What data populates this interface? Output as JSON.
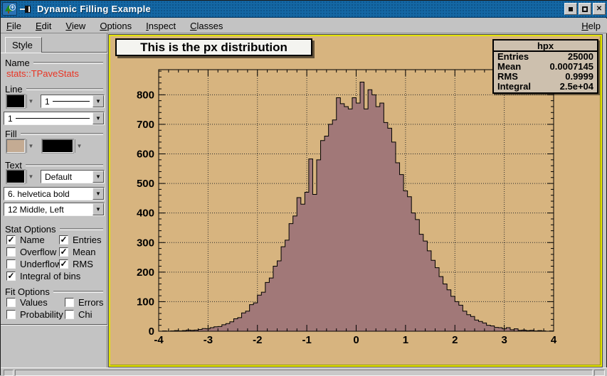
{
  "window": {
    "title": "Dynamic Filling Example"
  },
  "menubar": {
    "items": [
      {
        "label": "File"
      },
      {
        "label": "Edit"
      },
      {
        "label": "View"
      },
      {
        "label": "Options"
      },
      {
        "label": "Inspect"
      },
      {
        "label": "Classes"
      }
    ],
    "help": "Help"
  },
  "panel": {
    "tab": "Style",
    "name_group": {
      "label": "Name",
      "value": "stats::TPaveStats"
    },
    "line_group": {
      "label": "Line",
      "color": "#000000",
      "width_value": "1",
      "style_value": "1"
    },
    "fill_group": {
      "label": "Fill",
      "color": "#c4ab93",
      "pattern_color": "#000000"
    },
    "text_group": {
      "label": "Text",
      "color": "#000000",
      "align_value": "Default",
      "font_value": "6. helvetica bold",
      "size_value": "12 Middle, Left"
    },
    "stat_options": {
      "label": "Stat Options",
      "checks": [
        {
          "label": "Name",
          "checked": true
        },
        {
          "label": "Entries",
          "checked": true
        },
        {
          "label": "Overflow",
          "checked": false
        },
        {
          "label": "Mean",
          "checked": true
        },
        {
          "label": "Underflow",
          "checked": false
        },
        {
          "label": "RMS",
          "checked": true
        },
        {
          "label": "Integral of bins",
          "checked": true
        }
      ]
    },
    "fit_options": {
      "label": "Fit Options",
      "checks": [
        {
          "label": "Values",
          "checked": false
        },
        {
          "label": "Errors",
          "checked": false
        },
        {
          "label": "Probability",
          "checked": false
        },
        {
          "label": "Chi",
          "checked": false
        }
      ]
    }
  },
  "canvas": {
    "pave_title": "This is the px distribution",
    "stats": {
      "title": "hpx",
      "rows": [
        {
          "label": "Entries",
          "value": "25000"
        },
        {
          "label": "Mean",
          "value": "0.0007145"
        },
        {
          "label": "RMS",
          "value": "0.9999"
        },
        {
          "label": "Integral",
          "value": "2.5e+04"
        }
      ]
    },
    "colors": {
      "canvas_bg": "#d7b47f",
      "hist_fill": "#a17878",
      "hist_line": "#000000",
      "stats_bg": "#cdc0ae",
      "highlight_border": "#e4e400",
      "titlebar_blue": "#1467a4",
      "name_red": "#e93423"
    }
  },
  "chart_data": {
    "type": "bar",
    "title": "This is the px distribution",
    "xlabel": "",
    "ylabel": "",
    "x_min": -4,
    "x_max": 4,
    "bins": 100,
    "values": [
      0,
      1,
      0,
      1,
      2,
      1,
      2,
      4,
      3,
      4,
      6,
      9,
      8,
      12,
      15,
      16,
      22,
      26,
      32,
      42,
      46,
      62,
      68,
      90,
      96,
      122,
      132,
      165,
      180,
      220,
      238,
      286,
      308,
      364,
      390,
      452,
      430,
      470,
      583,
      463,
      580,
      645,
      660,
      700,
      715,
      790,
      770,
      760,
      752,
      790,
      772,
      843,
      752,
      817,
      800,
      760,
      772,
      706,
      687,
      640,
      570,
      530,
      475,
      455,
      400,
      378,
      328,
      305,
      272,
      240,
      215,
      185,
      160,
      140,
      118,
      100,
      88,
      68,
      56,
      50,
      38,
      33,
      28,
      20,
      18,
      13,
      12,
      8,
      12,
      5,
      8,
      3,
      4,
      2,
      3,
      1,
      2,
      1,
      0,
      1
    ],
    "xticks": [
      -4,
      -3,
      -2,
      -1,
      0,
      1,
      2,
      3,
      4
    ],
    "yticks": [
      0,
      100,
      200,
      300,
      400,
      500,
      600,
      700,
      800
    ],
    "ylim": [
      0,
      885
    ],
    "minor_x_step": 0.2,
    "minor_y_step": 20,
    "grid": "dotted",
    "legend_position": "none"
  }
}
